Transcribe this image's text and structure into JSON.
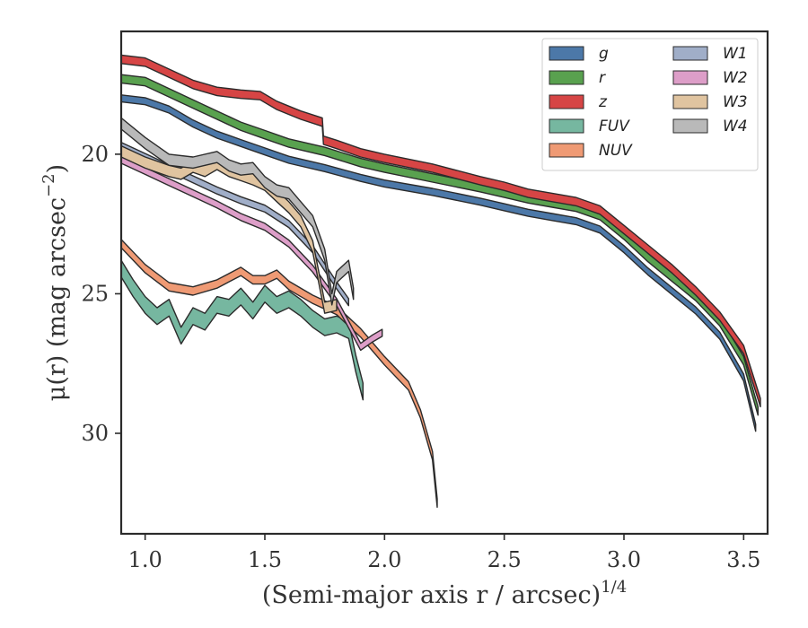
{
  "chart_data": {
    "type": "area",
    "xlabel": "(Semi-major axis r / arcsec)",
    "xlabel_exponent": "1/4",
    "ylabel": "μ(r) (mag arcsec",
    "ylabel_exponent": "−2",
    "ylabel_suffix": ")",
    "xlim": [
      0.9,
      3.6
    ],
    "ylim": [
      33.6,
      15.6
    ],
    "y_inverted": true,
    "xticks": [
      1.0,
      1.5,
      2.0,
      2.5,
      3.0,
      3.5
    ],
    "xtick_labels": [
      "1.0",
      "1.5",
      "2.0",
      "2.5",
      "3.0",
      "3.5"
    ],
    "yticks": [
      20,
      25,
      30
    ],
    "ytick_labels": [
      "20",
      "25",
      "30"
    ],
    "grid": false,
    "legend": {
      "placement": "top-right",
      "columns": 2
    },
    "series": [
      {
        "name": "g",
        "color": "#4c78a8",
        "width": 0.25,
        "points": [
          [
            0.9,
            18.0
          ],
          [
            1.0,
            18.1
          ],
          [
            1.1,
            18.4
          ],
          [
            1.2,
            18.9
          ],
          [
            1.3,
            19.3
          ],
          [
            1.4,
            19.6
          ],
          [
            1.5,
            19.9
          ],
          [
            1.6,
            20.2
          ],
          [
            1.75,
            20.5
          ],
          [
            1.9,
            20.85
          ],
          [
            2.0,
            21.05
          ],
          [
            2.2,
            21.35
          ],
          [
            2.4,
            21.7
          ],
          [
            2.5,
            21.9
          ],
          [
            2.6,
            22.1
          ],
          [
            2.7,
            22.25
          ],
          [
            2.8,
            22.4
          ],
          [
            2.9,
            22.7
          ],
          [
            3.0,
            23.4
          ],
          [
            3.1,
            24.2
          ],
          [
            3.2,
            24.9
          ],
          [
            3.3,
            25.6
          ],
          [
            3.4,
            26.5
          ],
          [
            3.5,
            28.0
          ],
          [
            3.55,
            29.8
          ]
        ]
      },
      {
        "name": "r",
        "color": "#59a14f",
        "width": 0.3,
        "points": [
          [
            0.9,
            17.3
          ],
          [
            1.0,
            17.4
          ],
          [
            1.1,
            17.8
          ],
          [
            1.2,
            18.2
          ],
          [
            1.3,
            18.6
          ],
          [
            1.4,
            19.0
          ],
          [
            1.5,
            19.3
          ],
          [
            1.6,
            19.6
          ],
          [
            1.75,
            19.9
          ],
          [
            1.9,
            20.3
          ],
          [
            2.0,
            20.5
          ],
          [
            2.2,
            20.85
          ],
          [
            2.4,
            21.2
          ],
          [
            2.5,
            21.4
          ],
          [
            2.6,
            21.6
          ],
          [
            2.7,
            21.75
          ],
          [
            2.8,
            21.9
          ],
          [
            2.9,
            22.2
          ],
          [
            3.0,
            22.9
          ],
          [
            3.1,
            23.7
          ],
          [
            3.2,
            24.4
          ],
          [
            3.3,
            25.1
          ],
          [
            3.4,
            26.0
          ],
          [
            3.5,
            27.4
          ],
          [
            3.56,
            29.2
          ]
        ]
      },
      {
        "name": "z",
        "color": "#d64545",
        "width": 0.3,
        "points": [
          [
            0.9,
            16.6
          ],
          [
            1.0,
            16.7
          ],
          [
            1.1,
            17.1
          ],
          [
            1.2,
            17.5
          ],
          [
            1.3,
            17.75
          ],
          [
            1.4,
            17.85
          ],
          [
            1.48,
            17.9
          ],
          [
            1.55,
            18.25
          ],
          [
            1.65,
            18.6
          ],
          [
            1.74,
            18.85
          ],
          [
            1.745,
            19.5
          ],
          [
            1.8,
            19.65
          ],
          [
            1.9,
            19.95
          ],
          [
            2.0,
            20.15
          ],
          [
            2.2,
            20.5
          ],
          [
            2.4,
            20.95
          ],
          [
            2.5,
            21.15
          ],
          [
            2.6,
            21.4
          ],
          [
            2.7,
            21.55
          ],
          [
            2.8,
            21.7
          ],
          [
            2.9,
            22.0
          ],
          [
            3.0,
            22.7
          ],
          [
            3.1,
            23.4
          ],
          [
            3.2,
            24.1
          ],
          [
            3.3,
            24.9
          ],
          [
            3.4,
            25.8
          ],
          [
            3.5,
            27.0
          ],
          [
            3.57,
            28.9
          ]
        ]
      },
      {
        "name": "FUV",
        "color": "#76b7a0",
        "width": 0.6,
        "points": [
          [
            0.9,
            24.1
          ],
          [
            0.95,
            24.8
          ],
          [
            1.0,
            25.4
          ],
          [
            1.05,
            25.8
          ],
          [
            1.1,
            25.5
          ],
          [
            1.15,
            26.5
          ],
          [
            1.2,
            25.8
          ],
          [
            1.25,
            26.0
          ],
          [
            1.3,
            25.4
          ],
          [
            1.35,
            25.5
          ],
          [
            1.4,
            25.1
          ],
          [
            1.45,
            25.6
          ],
          [
            1.5,
            25.0
          ],
          [
            1.55,
            25.4
          ],
          [
            1.6,
            25.2
          ],
          [
            1.65,
            25.5
          ],
          [
            1.7,
            25.9
          ],
          [
            1.75,
            26.2
          ],
          [
            1.8,
            26.1
          ],
          [
            1.85,
            26.3
          ],
          [
            1.88,
            27.5
          ],
          [
            1.91,
            28.5
          ]
        ]
      },
      {
        "name": "NUV",
        "color": "#ef9a74",
        "width": 0.3,
        "points": [
          [
            0.9,
            23.2
          ],
          [
            1.0,
            24.1
          ],
          [
            1.1,
            24.75
          ],
          [
            1.2,
            24.9
          ],
          [
            1.3,
            24.65
          ],
          [
            1.4,
            24.2
          ],
          [
            1.45,
            24.5
          ],
          [
            1.5,
            24.5
          ],
          [
            1.55,
            24.3
          ],
          [
            1.6,
            24.7
          ],
          [
            1.7,
            25.2
          ],
          [
            1.8,
            25.6
          ],
          [
            1.9,
            26.4
          ],
          [
            2.0,
            27.4
          ],
          [
            2.1,
            28.3
          ],
          [
            2.15,
            29.3
          ],
          [
            2.2,
            30.8
          ],
          [
            2.22,
            32.5
          ]
        ]
      },
      {
        "name": "W1",
        "color": "#a0aec8",
        "width": 0.25,
        "points": [
          [
            0.9,
            19.7
          ],
          [
            1.0,
            20.1
          ],
          [
            1.1,
            20.5
          ],
          [
            1.2,
            20.9
          ],
          [
            1.3,
            21.3
          ],
          [
            1.4,
            21.65
          ],
          [
            1.5,
            21.95
          ],
          [
            1.6,
            22.5
          ],
          [
            1.7,
            23.4
          ],
          [
            1.8,
            24.7
          ],
          [
            1.85,
            25.3
          ]
        ]
      },
      {
        "name": "W2",
        "color": "#dd9ec8",
        "width": 0.25,
        "points": [
          [
            0.9,
            20.2
          ],
          [
            1.0,
            20.6
          ],
          [
            1.1,
            21.0
          ],
          [
            1.2,
            21.4
          ],
          [
            1.3,
            21.8
          ],
          [
            1.4,
            22.25
          ],
          [
            1.5,
            22.6
          ],
          [
            1.6,
            23.2
          ],
          [
            1.7,
            24.1
          ],
          [
            1.8,
            25.3
          ],
          [
            1.9,
            26.9
          ],
          [
            1.95,
            26.6
          ],
          [
            1.99,
            26.4
          ]
        ]
      },
      {
        "name": "W3",
        "color": "#e0c4a0",
        "width": 0.4,
        "points": [
          [
            0.9,
            19.9
          ],
          [
            1.0,
            20.3
          ],
          [
            1.1,
            20.6
          ],
          [
            1.15,
            20.7
          ],
          [
            1.2,
            20.45
          ],
          [
            1.25,
            20.6
          ],
          [
            1.3,
            20.35
          ],
          [
            1.35,
            20.6
          ],
          [
            1.4,
            20.75
          ],
          [
            1.45,
            20.9
          ],
          [
            1.5,
            21.1
          ],
          [
            1.55,
            21.5
          ],
          [
            1.6,
            21.9
          ],
          [
            1.65,
            22.4
          ],
          [
            1.7,
            23.3
          ],
          [
            1.75,
            25.5
          ],
          [
            1.8,
            25.4
          ]
        ]
      },
      {
        "name": "W4",
        "color": "#b9b9b9",
        "width": 0.4,
        "points": [
          [
            0.9,
            18.9
          ],
          [
            1.0,
            19.6
          ],
          [
            1.1,
            20.2
          ],
          [
            1.2,
            20.3
          ],
          [
            1.3,
            20.1
          ],
          [
            1.35,
            20.4
          ],
          [
            1.4,
            20.55
          ],
          [
            1.45,
            20.5
          ],
          [
            1.5,
            21.0
          ],
          [
            1.55,
            21.3
          ],
          [
            1.6,
            21.4
          ],
          [
            1.65,
            21.9
          ],
          [
            1.7,
            22.4
          ],
          [
            1.75,
            23.6
          ],
          [
            1.78,
            25.2
          ],
          [
            1.8,
            24.4
          ],
          [
            1.85,
            24.0
          ],
          [
            1.87,
            25.0
          ]
        ]
      }
    ]
  }
}
